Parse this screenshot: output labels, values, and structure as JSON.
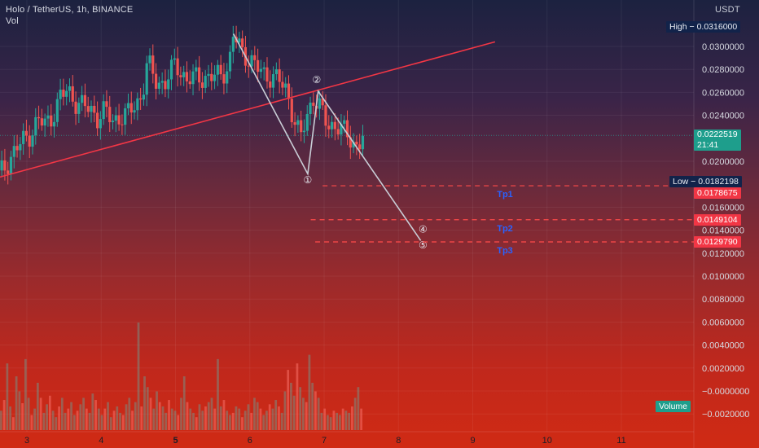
{
  "header": {
    "title": "Holo / TetherUS, 1h, BINANCE",
    "indicator": "Vol"
  },
  "axis": {
    "currency": "USDT"
  },
  "chart_data": {
    "type": "candlestick",
    "symbol": "Holo / TetherUS",
    "interval": "1h",
    "exchange": "BINANCE",
    "y_axis": {
      "ticks": [
        "0.0300000",
        "0.0280000",
        "0.0260000",
        "0.0240000",
        "0.0200000",
        "0.0160000",
        "0.0140000",
        "0.0120000",
        "0.0100000",
        "0.0080000",
        "0.0060000",
        "0.0040000",
        "0.0020000",
        "−0.0000000",
        "−0.0020000"
      ],
      "ylim": [
        -0.0025,
        0.032
      ]
    },
    "x_axis": {
      "ticks": [
        "3",
        "4",
        "5",
        "6",
        "7",
        "8",
        "9",
        "10",
        "11"
      ],
      "bold_ticks": [
        "5"
      ],
      "range_days": [
        2.62,
        11.95
      ]
    },
    "grid": true,
    "price_labels": {
      "high": {
        "label": "High",
        "value": "0.0316000"
      },
      "current": {
        "value": "0.0222519",
        "countdown": "21:41",
        "color": "#26a69a"
      },
      "low": {
        "label": "Low",
        "value": "0.0182198"
      },
      "targets": [
        {
          "name": "Tp1",
          "value": "0.0178675"
        },
        {
          "name": "Tp2",
          "value": "0.0149104"
        },
        {
          "name": "Tp3",
          "value": "0.0129790"
        }
      ],
      "volume": "Volume"
    },
    "price_path": [
      [
        2.62,
        0.0188
      ],
      [
        2.72,
        0.0196
      ],
      [
        2.82,
        0.0208
      ],
      [
        2.92,
        0.0216
      ],
      [
        3.05,
        0.0224
      ],
      [
        3.15,
        0.0236
      ],
      [
        3.25,
        0.0232
      ],
      [
        3.35,
        0.024
      ],
      [
        3.45,
        0.0256
      ],
      [
        3.55,
        0.0262
      ],
      [
        3.65,
        0.0252
      ],
      [
        3.75,
        0.0248
      ],
      [
        3.85,
        0.0246
      ],
      [
        3.95,
        0.0238
      ],
      [
        4.05,
        0.0244
      ],
      [
        4.15,
        0.0236
      ],
      [
        4.25,
        0.0238
      ],
      [
        4.35,
        0.024
      ],
      [
        4.45,
        0.025
      ],
      [
        4.55,
        0.0256
      ],
      [
        4.62,
        0.0286
      ],
      [
        4.72,
        0.0272
      ],
      [
        4.85,
        0.0266
      ],
      [
        5.0,
        0.0286
      ],
      [
        5.15,
        0.027
      ],
      [
        5.3,
        0.0274
      ],
      [
        5.45,
        0.0272
      ],
      [
        5.6,
        0.0276
      ],
      [
        5.72,
        0.0282
      ],
      [
        5.78,
        0.031
      ],
      [
        5.9,
        0.0296
      ],
      [
        6.05,
        0.0284
      ],
      [
        6.2,
        0.0276
      ],
      [
        6.4,
        0.027
      ],
      [
        6.5,
        0.0262
      ],
      [
        6.6,
        0.0234
      ],
      [
        6.68,
        0.022
      ],
      [
        6.75,
        0.0236
      ],
      [
        6.85,
        0.0256
      ],
      [
        6.95,
        0.0245
      ],
      [
        7.05,
        0.0232
      ],
      [
        7.2,
        0.023
      ],
      [
        7.35,
        0.022
      ],
      [
        7.45,
        0.0212
      ],
      [
        7.52,
        0.0222
      ]
    ],
    "volume_heights": [
      0.18,
      0.28,
      0.62,
      0.22,
      0.12,
      0.5,
      0.36,
      0.25,
      0.66,
      0.3,
      0.14,
      0.2,
      0.44,
      0.3,
      0.16,
      0.24,
      0.32,
      0.18,
      0.12,
      0.22,
      0.3,
      0.16,
      0.2,
      0.26,
      0.14,
      0.18,
      0.24,
      0.3,
      0.2,
      0.16,
      0.34,
      0.28,
      0.2,
      0.14,
      0.2,
      0.26,
      0.12,
      0.18,
      0.22,
      0.16,
      0.14,
      0.24,
      0.3,
      0.18,
      0.26,
      1.0,
      0.22,
      0.5,
      0.4,
      0.3,
      0.2,
      0.36,
      0.26,
      0.22,
      0.16,
      0.28,
      0.2,
      0.18,
      0.14,
      0.3,
      0.5,
      0.26,
      0.2,
      0.16,
      0.12,
      0.24,
      0.18,
      0.22,
      0.26,
      0.3,
      0.2,
      0.66,
      0.22,
      0.28,
      0.18,
      0.14,
      0.16,
      0.22,
      0.2,
      0.12,
      0.18,
      0.24,
      0.16,
      0.3,
      0.26,
      0.2,
      0.14,
      0.18,
      0.24,
      0.2,
      0.28,
      0.22,
      0.16,
      0.36,
      0.56,
      0.44,
      0.32,
      0.62,
      0.4,
      0.3,
      0.26,
      0.7,
      0.44,
      0.36,
      0.3,
      0.16,
      0.2,
      0.14,
      0.12,
      0.18,
      0.16,
      0.14,
      0.2,
      0.18,
      0.16,
      0.22,
      0.3,
      0.4,
      0.2
    ],
    "drawings": {
      "trendline": {
        "from": [
          2.62,
          0.0186
        ],
        "to": [
          9.3,
          0.0304
        ],
        "color": "#f23645"
      },
      "wave_path": [
        [
          5.78,
          0.0311
        ],
        [
          6.78,
          0.0189
        ],
        [
          6.92,
          0.0261
        ],
        [
          8.3,
          0.0131
        ]
      ],
      "wave_labels": [
        {
          "label": "①",
          "at": [
            6.78,
            0.0181
          ]
        },
        {
          "label": "②",
          "at": [
            6.9,
            0.0268
          ]
        },
        {
          "label": "④",
          "at": [
            8.33,
            0.0138
          ]
        },
        {
          "label": "⑤",
          "at": [
            8.33,
            0.0124
          ]
        }
      ],
      "target_lines": [
        {
          "name": "Tp1",
          "value": 0.0178675,
          "x_start": 6.98
        },
        {
          "name": "Tp2",
          "value": 0.0149104,
          "x_start": 6.82
        },
        {
          "name": "Tp3",
          "value": 0.012979,
          "x_start": 6.88
        }
      ],
      "target_text_color": "#2962ff"
    }
  }
}
